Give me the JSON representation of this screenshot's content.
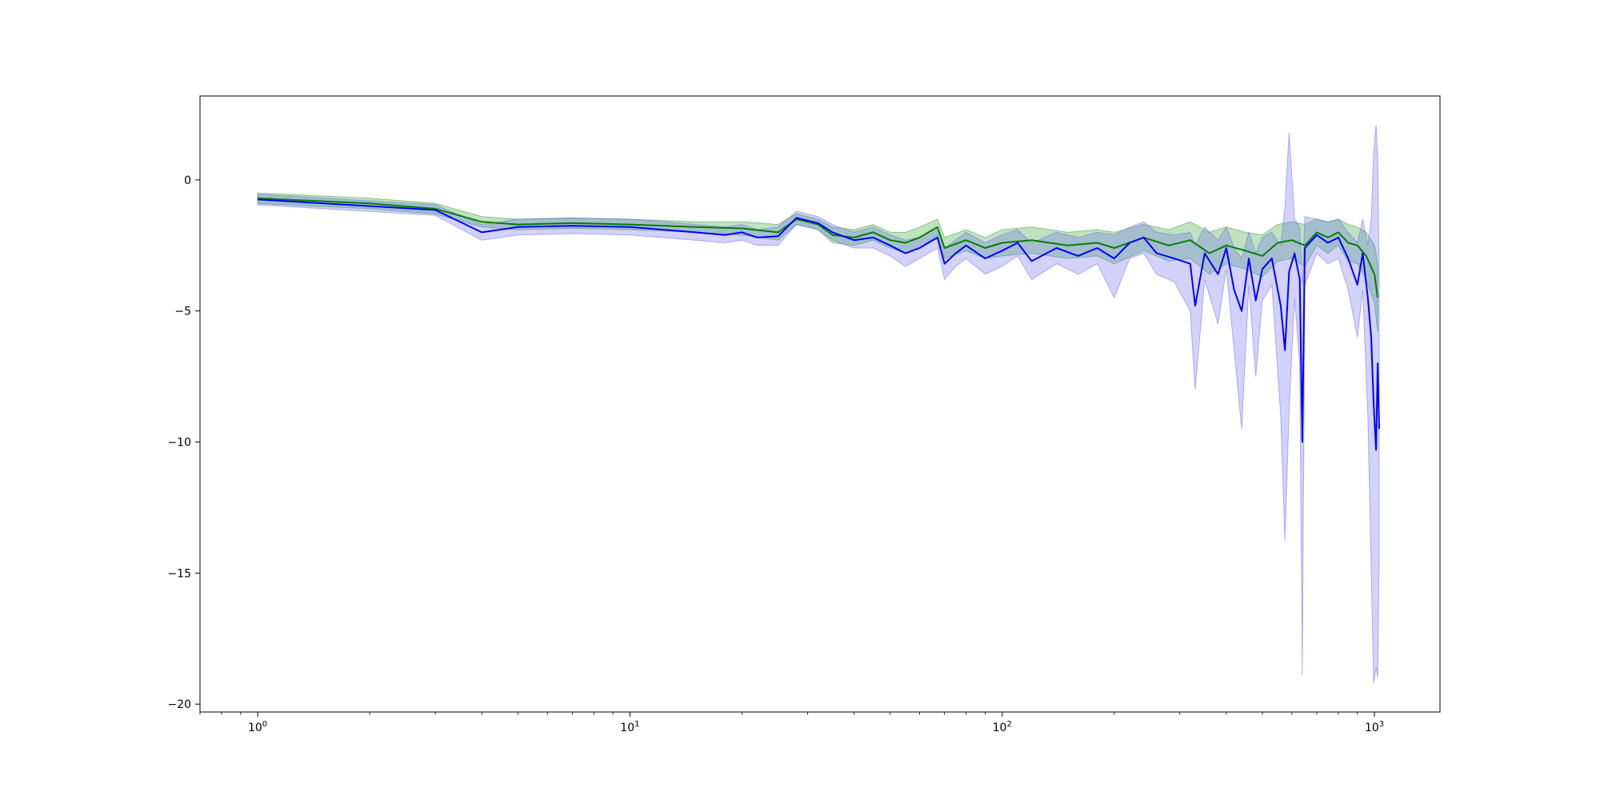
{
  "chart_data": {
    "type": "line",
    "title": "",
    "xlabel": "",
    "ylabel": "",
    "xscale": "log",
    "xlim": [
      0.7,
      1500
    ],
    "ylim": [
      -20.3,
      3.2
    ],
    "grid": false,
    "legend": "none",
    "xticks": [
      {
        "value": 1,
        "base": "10",
        "exp": "0"
      },
      {
        "value": 10,
        "base": "10",
        "exp": "1"
      },
      {
        "value": 100,
        "base": "10",
        "exp": "2"
      },
      {
        "value": 1000,
        "base": "10",
        "exp": "3"
      }
    ],
    "yticks": [
      {
        "value": 0,
        "label": "0"
      },
      {
        "value": -5,
        "label": "−5"
      },
      {
        "value": -10,
        "label": "−10"
      },
      {
        "value": -15,
        "label": "−15"
      },
      {
        "value": -20,
        "label": "−20"
      }
    ],
    "series": [
      {
        "color": "#008000",
        "band_color": "#2ca02c",
        "points": [
          [
            1,
            -0.7,
            -0.5,
            -0.9
          ],
          [
            2,
            -0.9,
            -0.7,
            -1.1
          ],
          [
            3,
            -1.1,
            -0.9,
            -1.3
          ],
          [
            4,
            -1.6,
            -1.4,
            -1.8
          ],
          [
            5,
            -1.7,
            -1.5,
            -1.9
          ],
          [
            7,
            -1.65,
            -1.45,
            -1.85
          ],
          [
            10,
            -1.7,
            -1.5,
            -1.9
          ],
          [
            15,
            -1.8,
            -1.6,
            -2.0
          ],
          [
            20,
            -1.85,
            -1.6,
            -2.1
          ],
          [
            25,
            -2.0,
            -1.7,
            -2.3
          ],
          [
            28,
            -1.5,
            -1.3,
            -1.7
          ],
          [
            32,
            -1.7,
            -1.5,
            -1.9
          ],
          [
            35,
            -2.1,
            -1.8,
            -2.4
          ],
          [
            40,
            -2.2,
            -1.9,
            -2.5
          ],
          [
            45,
            -2.0,
            -1.7,
            -2.3
          ],
          [
            50,
            -2.3,
            -2.0,
            -2.6
          ],
          [
            55,
            -2.4,
            -2.0,
            -2.8
          ],
          [
            60,
            -2.2,
            -1.8,
            -2.6
          ],
          [
            67,
            -1.8,
            -1.5,
            -2.1
          ],
          [
            70,
            -2.6,
            -2.2,
            -3.0
          ],
          [
            80,
            -2.3,
            -1.9,
            -2.7
          ],
          [
            90,
            -2.6,
            -2.2,
            -3.0
          ],
          [
            100,
            -2.4,
            -1.9,
            -2.9
          ],
          [
            120,
            -2.3,
            -1.8,
            -2.8
          ],
          [
            150,
            -2.5,
            -2.0,
            -3.0
          ],
          [
            180,
            -2.4,
            -1.9,
            -2.9
          ],
          [
            200,
            -2.6,
            -2.0,
            -3.2
          ],
          [
            240,
            -2.2,
            -1.7,
            -2.7
          ],
          [
            280,
            -2.5,
            -1.9,
            -3.1
          ],
          [
            320,
            -2.3,
            -1.6,
            -3.0
          ],
          [
            360,
            -2.8,
            -2.0,
            -3.6
          ],
          [
            400,
            -2.5,
            -1.8,
            -3.2
          ],
          [
            450,
            -2.7,
            -2.0,
            -3.4
          ],
          [
            500,
            -2.9,
            -2.1,
            -3.7
          ],
          [
            550,
            -2.4,
            -1.7,
            -3.1
          ],
          [
            600,
            -2.3,
            -1.6,
            -3.0
          ],
          [
            650,
            -2.5,
            -1.7,
            -3.3
          ],
          [
            700,
            -2.0,
            -1.5,
            -2.5
          ],
          [
            750,
            -2.2,
            -1.6,
            -2.8
          ],
          [
            800,
            -2.0,
            -1.5,
            -2.5
          ],
          [
            850,
            -2.4,
            -1.7,
            -3.1
          ],
          [
            900,
            -2.5,
            -1.8,
            -3.2
          ],
          [
            950,
            -2.9,
            -2.0,
            -3.8
          ],
          [
            1000,
            -3.6,
            -2.5,
            -4.7
          ],
          [
            1020,
            -4.5,
            -3.2,
            -5.8
          ]
        ]
      },
      {
        "color": "#0000ff",
        "band_color": "#6b6bf0",
        "points": [
          [
            1,
            -0.75,
            -0.55,
            -0.95
          ],
          [
            2,
            -1.0,
            -0.8,
            -1.2
          ],
          [
            3,
            -1.15,
            -0.95,
            -1.35
          ],
          [
            4,
            -2.0,
            -1.7,
            -2.3
          ],
          [
            5,
            -1.8,
            -1.5,
            -2.1
          ],
          [
            7,
            -1.75,
            -1.45,
            -2.05
          ],
          [
            10,
            -1.8,
            -1.5,
            -2.1
          ],
          [
            15,
            -2.0,
            -1.7,
            -2.3
          ],
          [
            18,
            -2.1,
            -1.8,
            -2.4
          ],
          [
            20,
            -2.0,
            -1.7,
            -2.3
          ],
          [
            22,
            -2.2,
            -1.9,
            -2.5
          ],
          [
            25,
            -2.15,
            -1.8,
            -2.5
          ],
          [
            28,
            -1.45,
            -1.2,
            -1.7
          ],
          [
            32,
            -1.65,
            -1.4,
            -1.9
          ],
          [
            35,
            -2.0,
            -1.7,
            -2.3
          ],
          [
            40,
            -2.3,
            -2.0,
            -2.6
          ],
          [
            45,
            -2.2,
            -1.8,
            -2.6
          ],
          [
            50,
            -2.5,
            -2.1,
            -2.9
          ],
          [
            55,
            -2.8,
            -2.3,
            -3.3
          ],
          [
            60,
            -2.6,
            -2.2,
            -3.0
          ],
          [
            67,
            -2.2,
            -1.8,
            -2.6
          ],
          [
            70,
            -3.2,
            -2.6,
            -3.8
          ],
          [
            75,
            -2.8,
            -2.3,
            -3.3
          ],
          [
            80,
            -2.5,
            -2.0,
            -3.0
          ],
          [
            90,
            -3.0,
            -2.4,
            -3.6
          ],
          [
            100,
            -2.7,
            -2.1,
            -3.3
          ],
          [
            110,
            -2.4,
            -1.9,
            -2.9
          ],
          [
            120,
            -3.1,
            -2.4,
            -3.8
          ],
          [
            140,
            -2.6,
            -2.0,
            -3.2
          ],
          [
            160,
            -2.9,
            -2.2,
            -3.6
          ],
          [
            180,
            -2.6,
            -2.0,
            -3.2
          ],
          [
            200,
            -3.0,
            -2.1,
            -4.5
          ],
          [
            220,
            -2.4,
            -1.8,
            -3.0
          ],
          [
            240,
            -2.2,
            -1.6,
            -2.8
          ],
          [
            260,
            -2.8,
            -2.0,
            -3.6
          ],
          [
            290,
            -3.0,
            -2.1,
            -3.9
          ],
          [
            320,
            -3.2,
            -2.0,
            -5.0
          ],
          [
            330,
            -4.8,
            -2.5,
            -8.0
          ],
          [
            350,
            -2.8,
            -1.8,
            -3.8
          ],
          [
            380,
            -3.6,
            -2.3,
            -5.5
          ],
          [
            400,
            -2.6,
            -1.8,
            -3.4
          ],
          [
            420,
            -4.2,
            -2.6,
            -6.5
          ],
          [
            440,
            -5.0,
            -3.0,
            -9.5
          ],
          [
            460,
            -3.0,
            -2.0,
            -4.0
          ],
          [
            480,
            -4.6,
            -2.8,
            -7.5
          ],
          [
            500,
            -3.4,
            -2.2,
            -4.6
          ],
          [
            530,
            -3.0,
            -2.0,
            -4.0
          ],
          [
            560,
            -4.8,
            -2.5,
            -9.0
          ],
          [
            575,
            -6.5,
            -1.0,
            -13.8
          ],
          [
            590,
            -3.5,
            1.8,
            -8.8
          ],
          [
            610,
            -2.8,
            -1.5,
            -4.5
          ],
          [
            630,
            -3.8,
            -1.8,
            -7.0
          ],
          [
            640,
            -10.0,
            -4.0,
            -18.9
          ],
          [
            650,
            -2.6,
            -1.4,
            -4.0
          ],
          [
            700,
            -2.1,
            -1.5,
            -2.8
          ],
          [
            750,
            -2.4,
            -1.6,
            -3.2
          ],
          [
            800,
            -2.2,
            -1.5,
            -3.0
          ],
          [
            850,
            -3.0,
            -2.0,
            -4.2
          ],
          [
            900,
            -4.0,
            -2.4,
            -6.0
          ],
          [
            930,
            -2.8,
            -1.5,
            -4.2
          ],
          [
            960,
            -4.5,
            -2.5,
            -9.0
          ],
          [
            980,
            -6.0,
            -1.5,
            -14.8
          ],
          [
            995,
            -8.5,
            1.0,
            -19.2
          ],
          [
            1010,
            -10.3,
            2.1,
            -18.6
          ],
          [
            1020,
            -7.0,
            0.8,
            -19.0
          ],
          [
            1030,
            -9.5,
            -3.5,
            -14.5
          ]
        ]
      }
    ]
  }
}
